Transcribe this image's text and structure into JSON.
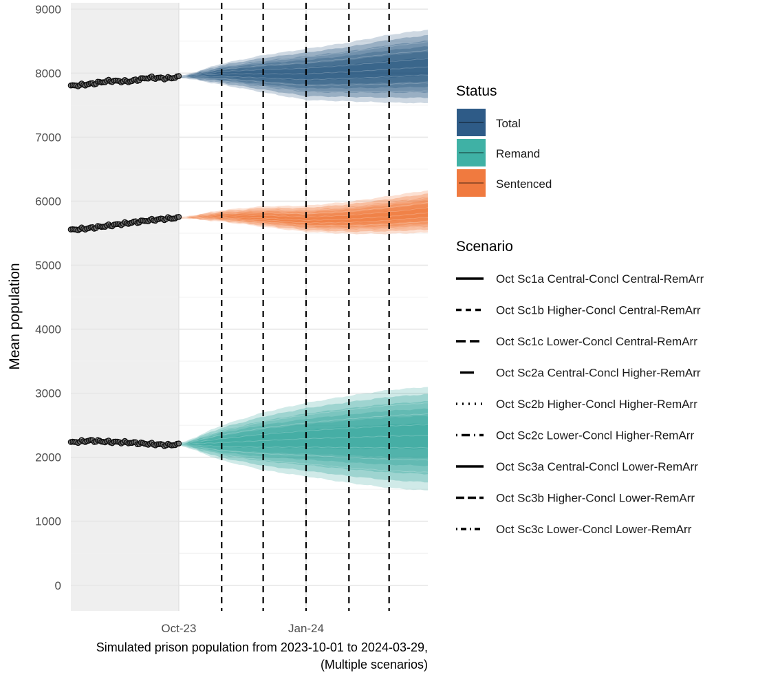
{
  "chart_data": {
    "type": "area",
    "xlabel": "",
    "ylabel": "Mean population",
    "caption_lines": [
      "Simulated prison population from 2023-10-01 to 2024-03-29,",
      "(Multiple scenarios)"
    ],
    "xlim": [
      "2023-07-15",
      "2024-03-29"
    ],
    "ylim": [
      -400,
      9100
    ],
    "y_ticks": [
      0,
      1000,
      2000,
      3000,
      4000,
      5000,
      6000,
      7000,
      8000,
      9000
    ],
    "x_ticks": [
      {
        "date": "2023-10-01",
        "label": "Oct-23"
      },
      {
        "date": "2024-01-01",
        "label": "Jan-24"
      }
    ],
    "historical_shading": {
      "from": "2023-07-15",
      "to": "2023-10-01",
      "color": "#efefef"
    },
    "vertical_lines": [
      "2023-11-01",
      "2023-12-01",
      "2024-01-01",
      "2024-02-01",
      "2024-03-01"
    ],
    "forecast_start": "2023-10-01",
    "forecast_end": "2024-03-29",
    "historical": [
      {
        "status": "Total",
        "points": [
          [
            "2023-07-15",
            7800
          ],
          [
            "2023-07-29",
            7830
          ],
          [
            "2023-08-12",
            7880
          ],
          [
            "2023-08-26",
            7870
          ],
          [
            "2023-09-09",
            7930
          ],
          [
            "2023-09-23",
            7920
          ],
          [
            "2023-10-01",
            7940
          ]
        ]
      },
      {
        "status": "Sentenced",
        "points": [
          [
            "2023-07-15",
            5550
          ],
          [
            "2023-07-29",
            5580
          ],
          [
            "2023-08-12",
            5620
          ],
          [
            "2023-08-26",
            5660
          ],
          [
            "2023-09-09",
            5700
          ],
          [
            "2023-09-23",
            5730
          ],
          [
            "2023-10-01",
            5740
          ]
        ]
      },
      {
        "status": "Remand",
        "points": [
          [
            "2023-07-15",
            2230
          ],
          [
            "2023-07-29",
            2260
          ],
          [
            "2023-08-12",
            2240
          ],
          [
            "2023-08-26",
            2230
          ],
          [
            "2023-09-09",
            2210
          ],
          [
            "2023-09-23",
            2190
          ],
          [
            "2023-10-01",
            2200
          ]
        ]
      }
    ],
    "forecast_fans": [
      {
        "status": "Total",
        "color": "#1f4e79",
        "start": 7940,
        "center": [
          [
            "2023-10-01",
            7940
          ],
          [
            "2023-11-01",
            7990
          ],
          [
            "2023-12-01",
            7990
          ],
          [
            "2024-01-01",
            7990
          ],
          [
            "2024-02-01",
            8020
          ],
          [
            "2024-03-01",
            8060
          ],
          [
            "2024-03-29",
            8100
          ]
        ],
        "outer_upper": [
          [
            "2023-10-01",
            7940
          ],
          [
            "2023-11-01",
            8150
          ],
          [
            "2023-12-01",
            8280
          ],
          [
            "2024-01-01",
            8380
          ],
          [
            "2024-02-01",
            8480
          ],
          [
            "2024-03-01",
            8600
          ],
          [
            "2024-03-29",
            8680
          ]
        ],
        "outer_lower": [
          [
            "2023-10-01",
            7940
          ],
          [
            "2023-11-01",
            7820
          ],
          [
            "2023-12-01",
            7700
          ],
          [
            "2024-01-01",
            7580
          ],
          [
            "2024-02-01",
            7560
          ],
          [
            "2024-03-01",
            7540
          ],
          [
            "2024-03-29",
            7530
          ]
        ]
      },
      {
        "status": "Sentenced",
        "color": "#f07030",
        "start": 5740,
        "center": [
          [
            "2023-10-01",
            5740
          ],
          [
            "2023-11-01",
            5760
          ],
          [
            "2023-12-01",
            5740
          ],
          [
            "2024-01-01",
            5700
          ],
          [
            "2024-02-01",
            5720
          ],
          [
            "2024-03-01",
            5760
          ],
          [
            "2024-03-29",
            5820
          ]
        ],
        "outer_upper": [
          [
            "2023-10-01",
            5740
          ],
          [
            "2023-11-01",
            5860
          ],
          [
            "2023-12-01",
            5920
          ],
          [
            "2024-01-01",
            5930
          ],
          [
            "2024-02-01",
            5990
          ],
          [
            "2024-03-01",
            6080
          ],
          [
            "2024-03-29",
            6170
          ]
        ],
        "outer_lower": [
          [
            "2023-10-01",
            5740
          ],
          [
            "2023-11-01",
            5680
          ],
          [
            "2023-12-01",
            5600
          ],
          [
            "2024-01-01",
            5520
          ],
          [
            "2024-02-01",
            5490
          ],
          [
            "2024-03-01",
            5490
          ],
          [
            "2024-03-29",
            5510
          ]
        ]
      },
      {
        "status": "Remand",
        "color": "#2aa198",
        "start": 2200,
        "center": [
          [
            "2023-10-01",
            2200
          ],
          [
            "2023-11-01",
            2230
          ],
          [
            "2023-12-01",
            2260
          ],
          [
            "2024-01-01",
            2290
          ],
          [
            "2024-02-01",
            2310
          ],
          [
            "2024-03-01",
            2330
          ],
          [
            "2024-03-29",
            2340
          ]
        ],
        "outer_upper": [
          [
            "2023-10-01",
            2200
          ],
          [
            "2023-11-01",
            2500
          ],
          [
            "2023-12-01",
            2700
          ],
          [
            "2024-01-01",
            2850
          ],
          [
            "2024-02-01",
            2960
          ],
          [
            "2024-03-01",
            3050
          ],
          [
            "2024-03-29",
            3100
          ]
        ],
        "outer_lower": [
          [
            "2023-10-01",
            2200
          ],
          [
            "2023-11-01",
            1950
          ],
          [
            "2023-12-01",
            1800
          ],
          [
            "2024-01-01",
            1700
          ],
          [
            "2024-02-01",
            1600
          ],
          [
            "2024-03-01",
            1520
          ],
          [
            "2024-03-29",
            1480
          ]
        ]
      }
    ],
    "legend_status": {
      "title": "Status",
      "entries": [
        {
          "label": "Total",
          "color": "#2e5b87"
        },
        {
          "label": "Remand",
          "color": "#3fb1a5"
        },
        {
          "label": "Sentenced",
          "color": "#f07a3f"
        }
      ]
    },
    "legend_scenario": {
      "title": "Scenario",
      "entries": [
        {
          "label": "Oct Sc1a Central-Concl Central-RemArr",
          "dash": "solid"
        },
        {
          "label": "Oct Sc1b Higher-Concl Central-RemArr",
          "dash": "dashed"
        },
        {
          "label": "Oct Sc1c Lower-Concl Central-RemArr",
          "dash": "longdash"
        },
        {
          "label": "Oct Sc2a Central-Concl Higher-RemArr",
          "dash": "short-solid"
        },
        {
          "label": "Oct Sc2b Higher-Concl Higher-RemArr",
          "dash": "dotted"
        },
        {
          "label": "Oct Sc2c Lower-Concl Higher-RemArr",
          "dash": "dotdash"
        },
        {
          "label": "Oct Sc3a Central-Concl Lower-RemArr",
          "dash": "solid"
        },
        {
          "label": "Oct Sc3b Higher-Concl Lower-RemArr",
          "dash": "twodash"
        },
        {
          "label": "Oct Sc3c Lower-Concl Lower-RemArr",
          "dash": "dotdash-short"
        }
      ]
    },
    "grid": true,
    "legend_position": "right"
  }
}
